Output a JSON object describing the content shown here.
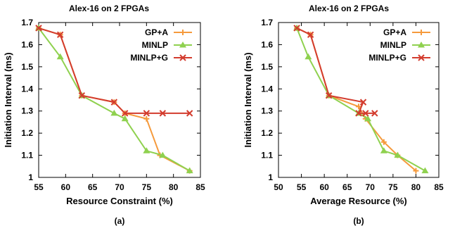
{
  "chart_data": [
    {
      "type": "line",
      "title": "Alex-16 on 2 FPGAs",
      "xlabel": "Resource Constraint (%)",
      "ylabel": "Initiation Interval (ms)",
      "caption": "(a)",
      "xlim": [
        55,
        85
      ],
      "ylim": [
        1,
        1.7
      ],
      "xticks": [
        55,
        60,
        65,
        70,
        75,
        80,
        85
      ],
      "yticks": [
        1,
        1.1,
        1.2,
        1.3,
        1.4,
        1.5,
        1.6,
        1.7
      ],
      "legend_position": "top-right",
      "series": [
        {
          "name": "GP+A",
          "color": "#f59a3c",
          "marker": "plus",
          "points": [
            [
              55,
              1.675
            ],
            [
              59,
              1.645
            ],
            [
              63,
              1.37
            ],
            [
              69,
              1.34
            ],
            [
              71,
              1.29
            ],
            [
              75,
              1.265
            ],
            [
              77.5,
              1.1
            ],
            [
              83,
              1.03
            ]
          ]
        },
        {
          "name": "MINLP",
          "color": "#8fd14f",
          "marker": "triangle",
          "points": [
            [
              55,
              1.675
            ],
            [
              59,
              1.545
            ],
            [
              63,
              1.37
            ],
            [
              69,
              1.29
            ],
            [
              71,
              1.265
            ],
            [
              75,
              1.12
            ],
            [
              78,
              1.1
            ],
            [
              83,
              1.03
            ]
          ]
        },
        {
          "name": "MINLP+G",
          "color": "#d33c2e",
          "marker": "x",
          "points": [
            [
              55,
              1.675
            ],
            [
              59,
              1.645
            ],
            [
              63,
              1.37
            ],
            [
              69,
              1.34
            ],
            [
              71,
              1.29
            ],
            [
              75,
              1.29
            ],
            [
              78,
              1.29
            ],
            [
              83,
              1.29
            ]
          ]
        }
      ]
    },
    {
      "type": "line",
      "title": "Alex-16 on 2 FPGAs",
      "xlabel": "Average Resource (%)",
      "ylabel": "Initiation Interval (ms)",
      "caption": "(b)",
      "xlim": [
        50,
        85
      ],
      "ylim": [
        1,
        1.7
      ],
      "xticks": [
        50,
        55,
        60,
        65,
        70,
        75,
        80,
        85
      ],
      "yticks": [
        1,
        1.1,
        1.2,
        1.3,
        1.4,
        1.5,
        1.6,
        1.7
      ],
      "legend_position": "top-right",
      "series": [
        {
          "name": "GP+A",
          "color": "#f59a3c",
          "marker": "plus",
          "points": [
            [
              54,
              1.675
            ],
            [
              57,
              1.645
            ],
            [
              61,
              1.37
            ],
            [
              67.5,
              1.32
            ],
            [
              69,
              1.265
            ],
            [
              73,
              1.16
            ],
            [
              76,
              1.1
            ],
            [
              80,
              1.03
            ]
          ]
        },
        {
          "name": "MINLP",
          "color": "#8fd14f",
          "marker": "triangle",
          "points": [
            [
              54,
              1.675
            ],
            [
              56.5,
              1.545
            ],
            [
              61,
              1.37
            ],
            [
              67.5,
              1.29
            ],
            [
              69.5,
              1.265
            ],
            [
              73,
              1.12
            ],
            [
              76,
              1.1
            ],
            [
              82,
              1.03
            ]
          ]
        },
        {
          "name": "MINLP+G",
          "color": "#d33c2e",
          "marker": "x",
          "points": [
            [
              54,
              1.675
            ],
            [
              57,
              1.645
            ],
            [
              61,
              1.37
            ],
            [
              68.5,
              1.34
            ],
            [
              67.5,
              1.29
            ],
            [
              69,
              1.29
            ],
            [
              71,
              1.29
            ]
          ]
        }
      ]
    }
  ]
}
